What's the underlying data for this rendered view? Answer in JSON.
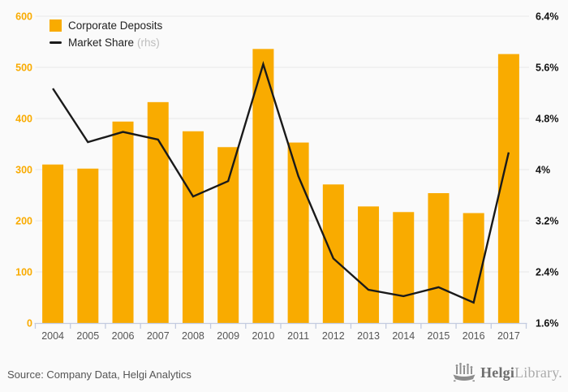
{
  "legend": {
    "bar_label": "Corporate Deposits",
    "line_label": "Market Share",
    "line_suffix": "(rhs)"
  },
  "footer": {
    "source": "Source: Company Data, Helgi Analytics",
    "logo_bold": "Helgi",
    "logo_light": "Library."
  },
  "colors": {
    "bar": "#F9AB00",
    "line": "#1A1A1A",
    "left_axis_labels": "#F9AB00",
    "right_axis_labels": "#111111",
    "grid": "#E8E8E8",
    "axis": "#C3CBE0",
    "x_labels": "#555555",
    "rhs_suffix": "#BDBDBD",
    "background": "#FAFAFA",
    "source_text": "#555555",
    "logo_gray": "#8C8C8C"
  },
  "chart_data": {
    "type": "bar",
    "subtype": "combo-bar-line",
    "title": "",
    "categories": [
      "2004",
      "2005",
      "2006",
      "2007",
      "2008",
      "2009",
      "2010",
      "2011",
      "2012",
      "2013",
      "2014",
      "2015",
      "2016",
      "2017"
    ],
    "series": [
      {
        "name": "Corporate Deposits",
        "type": "bar",
        "axis": "left",
        "values": [
          310,
          302,
          394,
          432,
          375,
          344,
          536,
          353,
          271,
          228,
          217,
          254,
          215,
          526
        ]
      },
      {
        "name": "Market Share (rhs)",
        "type": "line",
        "axis": "right",
        "values": [
          5.27,
          4.43,
          4.59,
          4.47,
          3.58,
          3.82,
          5.65,
          3.9,
          2.61,
          2.12,
          2.02,
          2.16,
          1.92,
          4.27
        ]
      }
    ],
    "left_axis": {
      "min": 0,
      "max": 600,
      "ticks": [
        0,
        100,
        200,
        300,
        400,
        500,
        600
      ]
    },
    "right_axis": {
      "min": 1.6,
      "max": 6.4,
      "ticks": [
        1.6,
        2.4,
        3.2,
        4,
        4.8,
        5.6,
        6.4
      ],
      "tick_labels": [
        "1.6%",
        "2.4%",
        "3.2%",
        "4%",
        "4.8%",
        "5.6%",
        "6.4%"
      ],
      "note": "rhs"
    },
    "grid": true,
    "legend_position": "top-left"
  }
}
